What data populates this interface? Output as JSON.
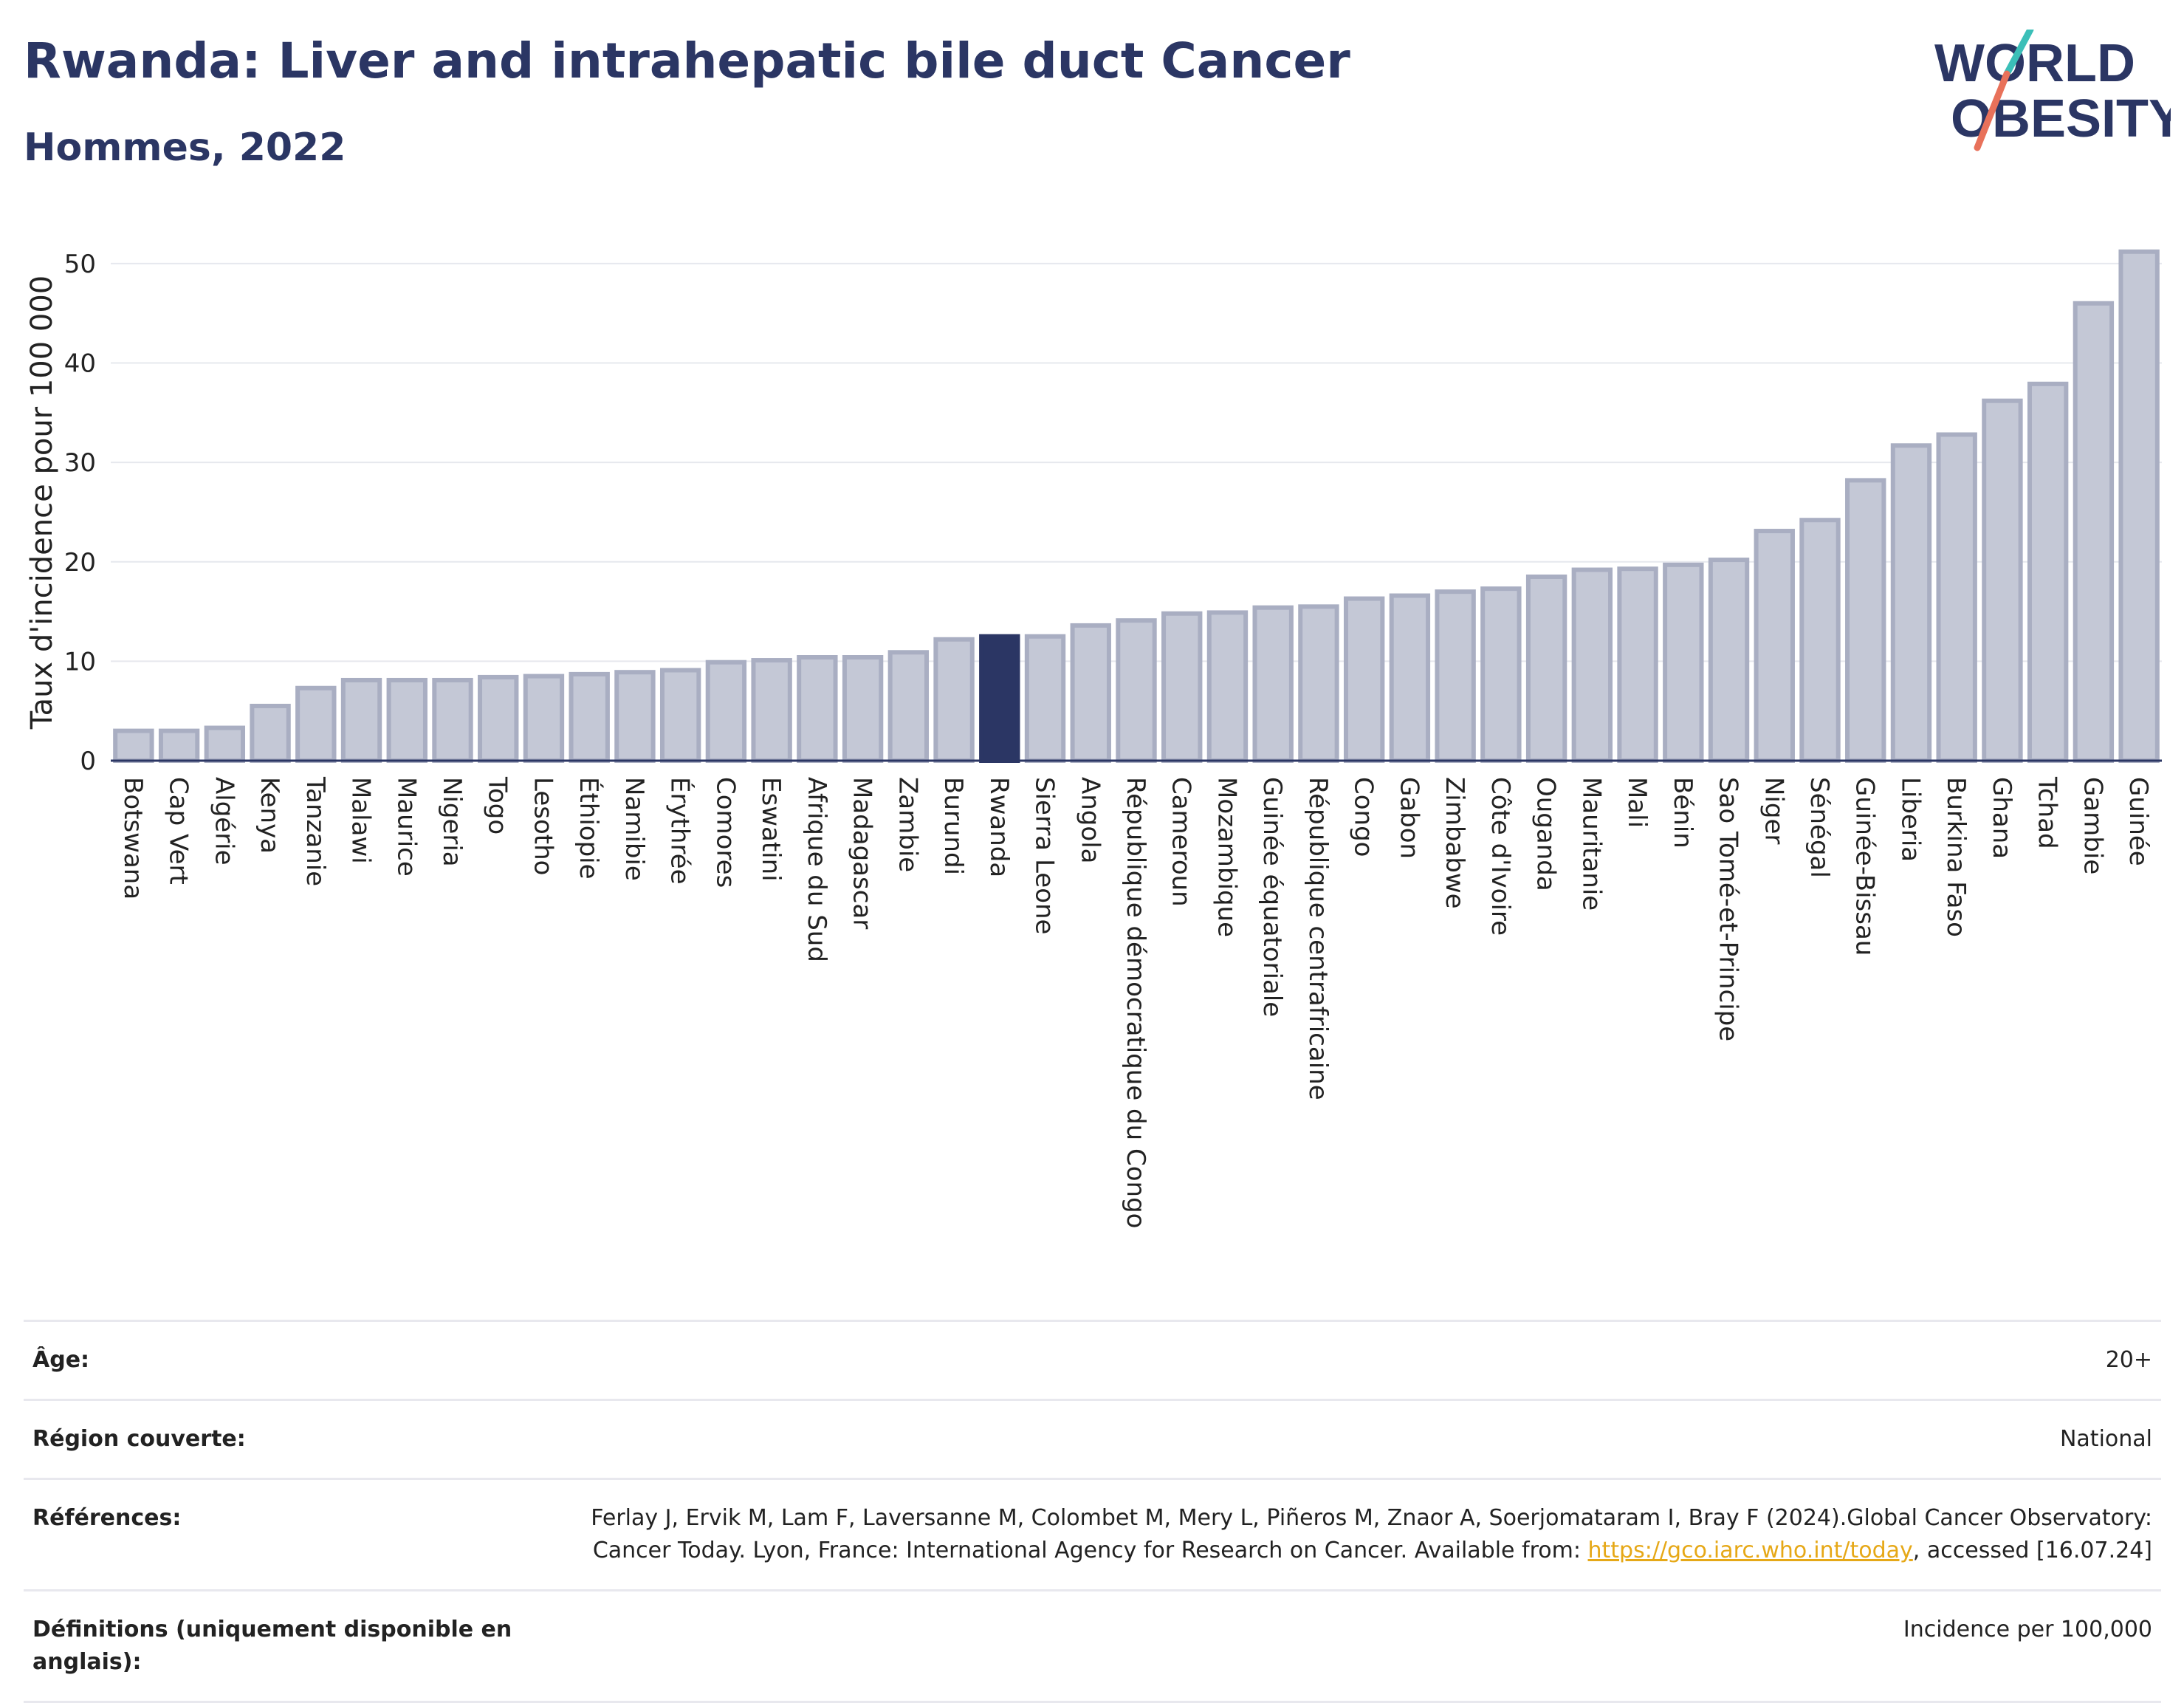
{
  "header": {
    "title": "Rwanda: Liver and intrahepatic bile duct Cancer",
    "subtitle": "Hommes, 2022"
  },
  "logo": {
    "line1": "WORLD",
    "line2": "OBESITY",
    "colors": [
      "#2b3664",
      "#3bbfb8",
      "#e8715a"
    ]
  },
  "colors": {
    "highlight": "#2b3664",
    "bar_fill": "#c4c8d6",
    "bar_stroke": "#a9aec2",
    "grid": "#e6e8ee",
    "axis": "#2b3664"
  },
  "chart_data": {
    "type": "bar",
    "ylabel": "Taux d'incidence pour 100 000",
    "ylim": [
      0,
      52
    ],
    "yticks": [
      0,
      10,
      20,
      30,
      40,
      50
    ],
    "highlight": "Rwanda",
    "categories": [
      "Botswana",
      "Cap Vert",
      "Algérie",
      "Kenya",
      "Tanzanie",
      "Malawi",
      "Maurice",
      "Nigeria",
      "Togo",
      "Lesotho",
      "Éthiopie",
      "Namibie",
      "Érythrée",
      "Comores",
      "Eswatini",
      "Afrique du Sud",
      "Madagascar",
      "Zambie",
      "Burundi",
      "Rwanda",
      "Sierra Leone",
      "Angola",
      "République démocratique du Congo",
      "Cameroun",
      "Mozambique",
      "Guinée équatoriale",
      "République centrafricaine",
      "Congo",
      "Gabon",
      "Zimbabwe",
      "Côte d'Ivoire",
      "Ouganda",
      "Mauritanie",
      "Mali",
      "Bénin",
      "Sao Tomé-et-Principe",
      "Niger",
      "Sénégal",
      "Guinée-Bissau",
      "Liberia",
      "Burkina Faso",
      "Ghana",
      "Tchad",
      "Gambie",
      "Guinée"
    ],
    "values": [
      3.0,
      3.0,
      3.3,
      5.5,
      7.3,
      8.1,
      8.1,
      8.1,
      8.4,
      8.5,
      8.7,
      8.9,
      9.1,
      9.9,
      10.1,
      10.4,
      10.4,
      10.9,
      12.2,
      12.5,
      12.5,
      13.6,
      14.1,
      14.8,
      14.9,
      15.4,
      15.5,
      16.3,
      16.6,
      17.0,
      17.3,
      18.5,
      19.2,
      19.3,
      19.7,
      20.2,
      23.1,
      24.2,
      28.2,
      31.7,
      32.8,
      36.2,
      37.9,
      46.0,
      51.2
    ]
  },
  "table": {
    "age_label": "Âge:",
    "age_value": "20+",
    "region_label": "Région couverte:",
    "region_value": "National",
    "refs_label": "Références:",
    "refs_text_1": "Ferlay J, Ervik M, Lam F, Laversanne M, Colombet M, Mery L, Piñeros M, Znaor A, Soerjomataram I, Bray F (2024).Global Cancer Observatory: Cancer Today. Lyon, France: International Agency for Research on Cancer. Available from: ",
    "refs_link": "https://gco.iarc.who.int/today",
    "refs_text_2": ", accessed [16.07.24]",
    "def_label": "Définitions (uniquement disponible en anglais):",
    "def_value": "Incidence per 100,000"
  }
}
